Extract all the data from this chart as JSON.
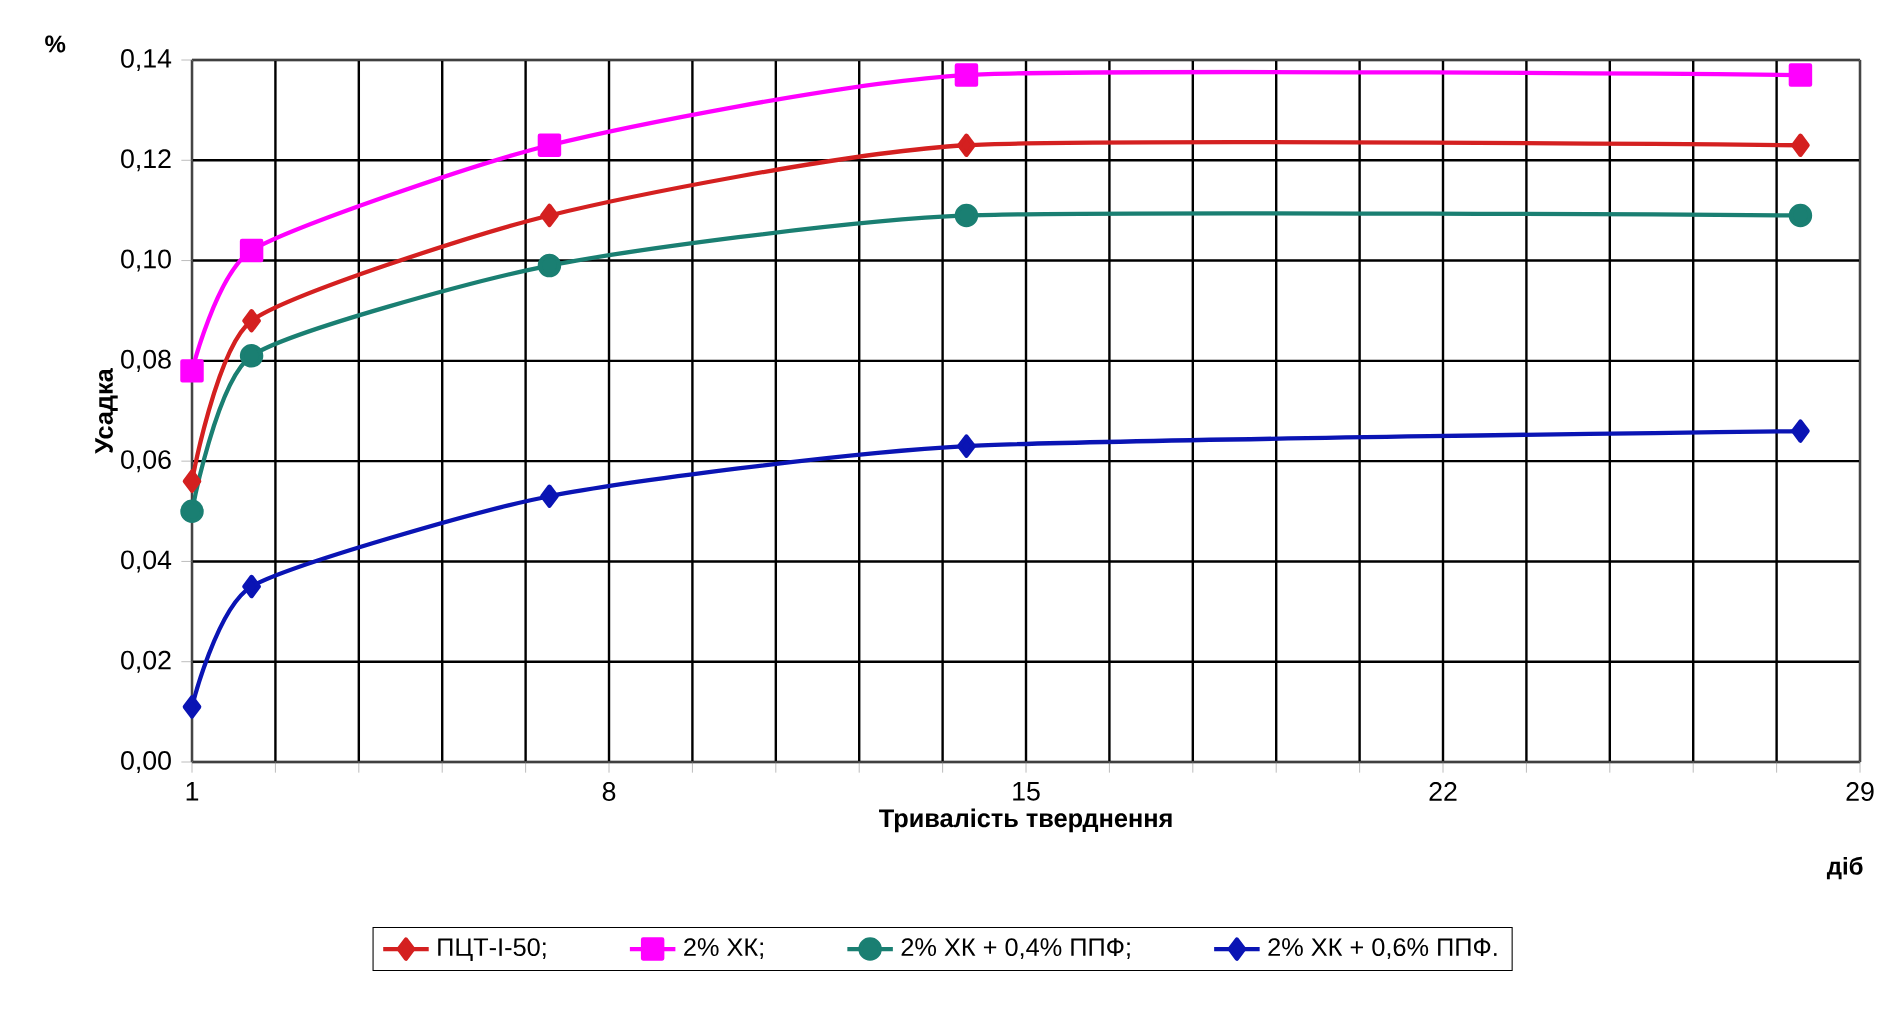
{
  "chart_data": {
    "type": "line",
    "xlabel": "Тривалість тверднення",
    "ylabel": "Усадка",
    "annotations": [
      "%",
      "діб"
    ],
    "x": [
      1,
      2,
      7,
      14,
      28
    ],
    "series": [
      {
        "name": "ПЦТ-І-50;",
        "color": "#d42020",
        "marker": "diamond",
        "values": [
          0.056,
          0.088,
          0.109,
          0.123,
          0.123
        ]
      },
      {
        "name": "2% ХК;",
        "color": "#ff00ff",
        "marker": "square",
        "values": [
          0.078,
          0.102,
          0.123,
          0.137,
          0.137
        ]
      },
      {
        "name": "2% ХК + 0,4% ППФ;",
        "color": "#1a7f72",
        "marker": "circle",
        "values": [
          0.05,
          0.081,
          0.099,
          0.109,
          0.109
        ]
      },
      {
        "name": "2% ХК + 0,6% ППФ.",
        "color": "#0a14b4",
        "marker": "diamond",
        "values": [
          0.011,
          0.035,
          0.053,
          0.063,
          0.066
        ]
      }
    ],
    "xlim": [
      1,
      29
    ],
    "xticks": [
      1,
      {
        "value": 2.4,
        "label": null
      },
      {
        "value": 3.8,
        "label": null
      },
      {
        "value": 5.2,
        "label": null
      },
      {
        "value": 6.6,
        "label": null
      },
      8,
      {
        "value": 9.4,
        "label": null
      },
      {
        "value": 10.8,
        "label": null
      },
      {
        "value": 12.2,
        "label": null
      },
      {
        "value": 13.6,
        "label": null
      },
      15,
      {
        "value": 16.4,
        "label": null
      },
      {
        "value": 17.8,
        "label": null
      },
      {
        "value": 19.2,
        "label": null
      },
      {
        "value": 20.6,
        "label": null
      },
      22,
      {
        "value": 23.4,
        "label": null
      },
      {
        "value": 24.8,
        "label": null
      },
      {
        "value": 26.2,
        "label": null
      },
      {
        "value": 27.6,
        "label": null
      },
      29
    ],
    "ylim": [
      0,
      0.14
    ],
    "yticks": [
      {
        "value": 0,
        "label": "0,00"
      },
      {
        "value": 0.02,
        "label": "0,02"
      },
      {
        "value": 0.04,
        "label": "0,04"
      },
      {
        "value": 0.06,
        "label": "0,06"
      },
      {
        "value": 0.08,
        "label": "0,08"
      },
      {
        "value": 0.1,
        "label": "0,10"
      },
      {
        "value": 0.12,
        "label": "0,12"
      },
      {
        "value": 0.14,
        "label": "0,14"
      }
    ],
    "grid": true,
    "legend": "bottom",
    "line_style": "solid"
  }
}
